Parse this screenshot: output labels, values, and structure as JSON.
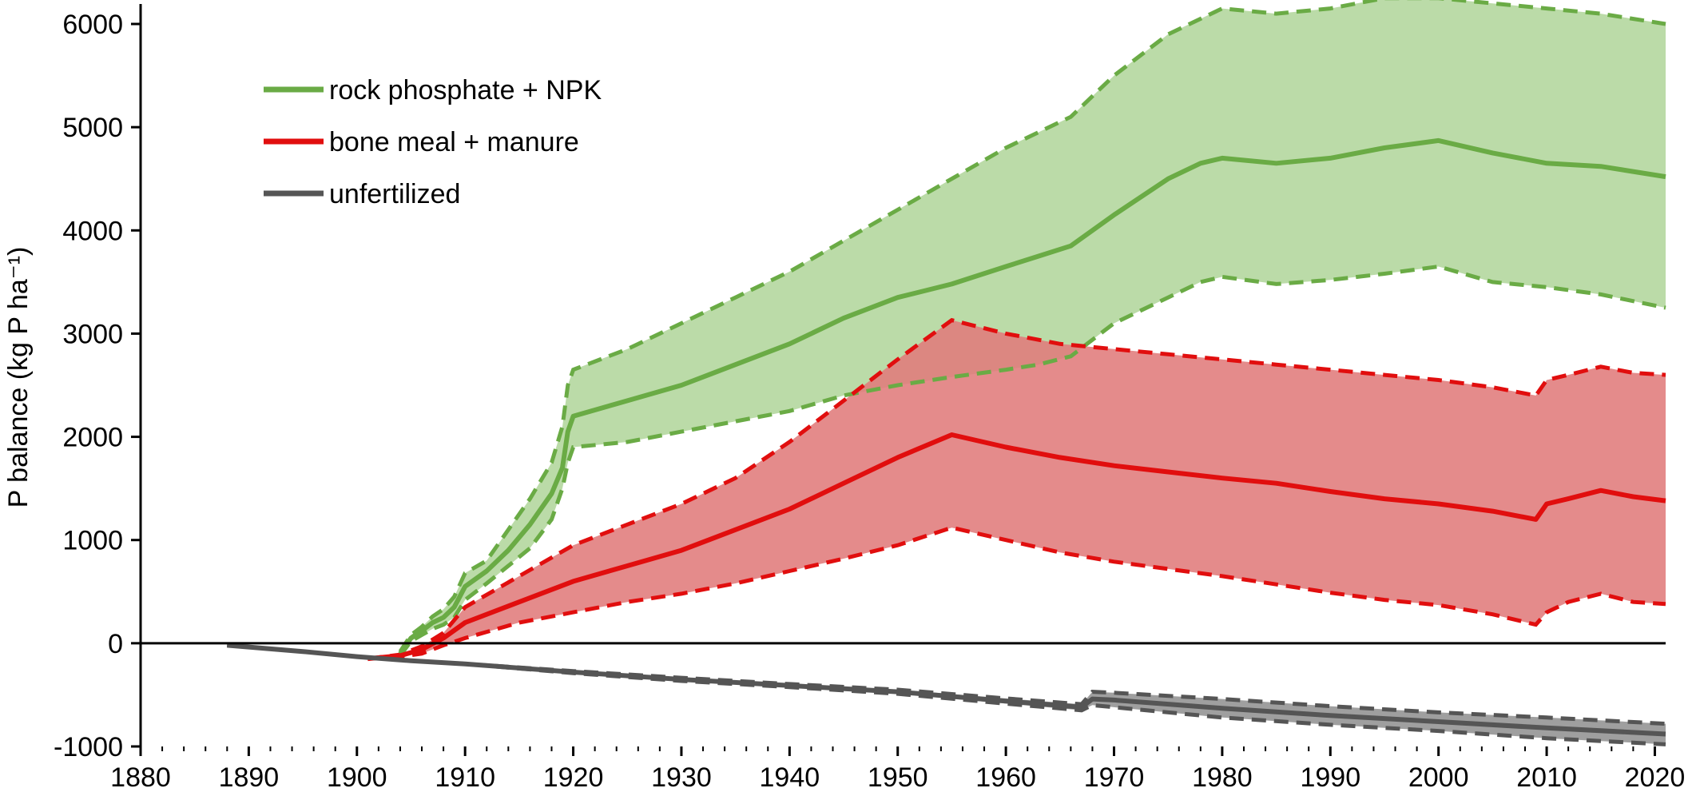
{
  "chart_data": {
    "type": "area",
    "ylabel": "P balance (kg P ha⁻¹)",
    "xlabel": "",
    "xlim": [
      1880,
      2021
    ],
    "ylim": [
      -1000,
      6000
    ],
    "xticks": [
      "1880",
      "1890",
      "1900",
      "1910",
      "1920",
      "1930",
      "1940",
      "1950",
      "1960",
      "1970",
      "1980",
      "1990",
      "2000",
      "2010",
      "2020"
    ],
    "yticks": [
      "-1000",
      "0",
      "1000",
      "2000",
      "3000",
      "4000",
      "5000",
      "6000"
    ],
    "zero_line": true,
    "grid": false,
    "legend_position": "top-left",
    "series": [
      {
        "name": "rock phosphate + NPK",
        "color": "#6aab45",
        "fill": "#b7d9a3",
        "x": [
          1904,
          1905,
          1906,
          1907,
          1908,
          1909,
          1910,
          1912,
          1914,
          1916,
          1918,
          1919,
          1919.5,
          1920,
          1925,
          1930,
          1935,
          1940,
          1945,
          1950,
          1955,
          1960,
          1963,
          1966,
          1970,
          1975,
          1978,
          1980,
          1985,
          1990,
          1995,
          2000,
          2005,
          2010,
          2015,
          2021
        ],
        "mean": [
          -100,
          50,
          120,
          200,
          250,
          350,
          550,
          700,
          900,
          1150,
          1450,
          1700,
          2050,
          2200,
          2350,
          2500,
          2700,
          2900,
          3150,
          3350,
          3480,
          3650,
          3750,
          3850,
          4150,
          4500,
          4650,
          4700,
          4650,
          4700,
          4800,
          4870,
          4750,
          4650,
          4620,
          4520
        ],
        "upper": [
          -80,
          80,
          160,
          260,
          330,
          450,
          680,
          800,
          1100,
          1400,
          1750,
          2100,
          2500,
          2650,
          2850,
          3100,
          3350,
          3600,
          3900,
          4200,
          4500,
          4800,
          4950,
          5100,
          5500,
          5900,
          6050,
          6150,
          6100,
          6150,
          6250,
          6250,
          6200,
          6150,
          6100,
          6000
        ],
        "lower": [
          -120,
          20,
          80,
          140,
          180,
          250,
          420,
          580,
          750,
          920,
          1200,
          1500,
          1750,
          1900,
          1950,
          2050,
          2150,
          2250,
          2400,
          2500,
          2580,
          2650,
          2700,
          2780,
          3100,
          3350,
          3500,
          3550,
          3480,
          3520,
          3580,
          3650,
          3500,
          3450,
          3380,
          3250
        ]
      },
      {
        "name": "bone meal + manure",
        "color": "#e10e0e",
        "fill": "#e07b7b",
        "x": [
          1901,
          1904,
          1906,
          1908,
          1910,
          1915,
          1920,
          1925,
          1930,
          1935,
          1940,
          1945,
          1950,
          1955,
          1960,
          1965,
          1970,
          1975,
          1980,
          1985,
          1990,
          1995,
          2000,
          2005,
          2009,
          2010,
          2012,
          2015,
          2018,
          2021
        ],
        "mean": [
          -150,
          -120,
          -60,
          50,
          200,
          400,
          600,
          750,
          900,
          1100,
          1300,
          1550,
          1800,
          2020,
          1900,
          1800,
          1720,
          1660,
          1600,
          1550,
          1470,
          1400,
          1350,
          1280,
          1200,
          1350,
          1400,
          1480,
          1420,
          1380
        ],
        "upper": [
          -150,
          -110,
          -30,
          100,
          350,
          650,
          950,
          1150,
          1350,
          1600,
          1950,
          2350,
          2750,
          3130,
          3000,
          2900,
          2850,
          2800,
          2750,
          2700,
          2650,
          2600,
          2550,
          2480,
          2400,
          2550,
          2600,
          2680,
          2620,
          2600
        ],
        "lower": [
          -150,
          -130,
          -100,
          -20,
          50,
          200,
          300,
          400,
          480,
          580,
          700,
          820,
          950,
          1120,
          1000,
          880,
          790,
          720,
          650,
          570,
          490,
          420,
          370,
          280,
          180,
          300,
          400,
          480,
          400,
          380
        ]
      },
      {
        "name": "unfertilized",
        "color": "#555555",
        "fill": "#9a9a9a",
        "x": [
          1888,
          1895,
          1900,
          1905,
          1910,
          1920,
          1930,
          1940,
          1950,
          1960,
          1967,
          1968,
          1970,
          1980,
          1990,
          2000,
          2010,
          2021
        ],
        "mean": [
          -20,
          -80,
          -130,
          -170,
          -200,
          -280,
          -350,
          -410,
          -470,
          -560,
          -620,
          -540,
          -550,
          -630,
          -700,
          -760,
          -820,
          -880
        ],
        "upper": [
          -20,
          -80,
          -130,
          -170,
          -200,
          -270,
          -335,
          -395,
          -450,
          -535,
          -590,
          -470,
          -480,
          -540,
          -610,
          -670,
          -720,
          -780
        ],
        "lower": [
          -20,
          -80,
          -130,
          -170,
          -200,
          -290,
          -365,
          -425,
          -490,
          -585,
          -650,
          -600,
          -620,
          -720,
          -790,
          -850,
          -920,
          -980
        ]
      }
    ]
  }
}
